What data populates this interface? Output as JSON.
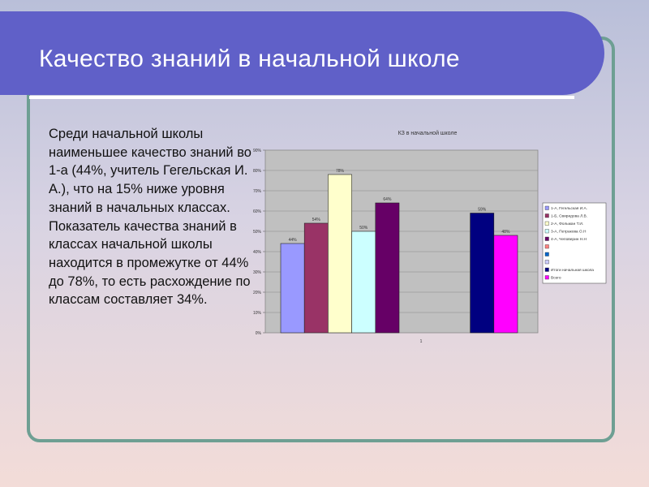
{
  "slide": {
    "title": "Качество знаний в начальной школе",
    "body": "Среди начальной школы наименьшее качество знаний во 1-а  (44%, учитель Гегельская И. А.), что на 15%  ниже уровня знаний в начальных классах. Показатель качества знаний в классах начальной школы находится в промежутке от 44% до 78%, то есть расхождение по классам составляет 34%."
  },
  "chart_data": {
    "type": "bar",
    "title": "КЗ в начальной  школе",
    "categories": [
      "1"
    ],
    "ylim": [
      0,
      90
    ],
    "y_ticks": [
      "0%",
      "10%",
      "20%",
      "30%",
      "40%",
      "50%",
      "60%",
      "70%",
      "80%",
      "90%"
    ],
    "grid": true,
    "legend_position": "right",
    "series": [
      {
        "name": "1-А, Гегельская И.А.",
        "value": 44,
        "label": "44%",
        "color": "#9999ff"
      },
      {
        "name": "1-Б, Свиридова Л.В.",
        "value": 54,
        "label": "54%",
        "color": "#993366"
      },
      {
        "name": "2-А, Фольман Т.И.",
        "value": 78,
        "label": "78%",
        "color": "#ffffcc"
      },
      {
        "name": "3-А, Петракова О.Н",
        "value": 50,
        "label": "50%",
        "color": "#ccffff"
      },
      {
        "name": "4-А, Чеповерин Н.Н",
        "value": 64,
        "label": "64%",
        "color": "#660066"
      },
      {
        "name": "",
        "value": null,
        "label": "",
        "color": "#ff8080"
      },
      {
        "name": "",
        "value": null,
        "label": "",
        "color": "#0066cc"
      },
      {
        "name": "",
        "value": null,
        "label": "",
        "color": "#ccccff"
      },
      {
        "name": "Итоги начальная школа",
        "value": 59,
        "label": "59%",
        "color": "#000080"
      },
      {
        "name": "Всего",
        "value": 48,
        "label": "48%",
        "color": "#ff00ff"
      }
    ]
  }
}
